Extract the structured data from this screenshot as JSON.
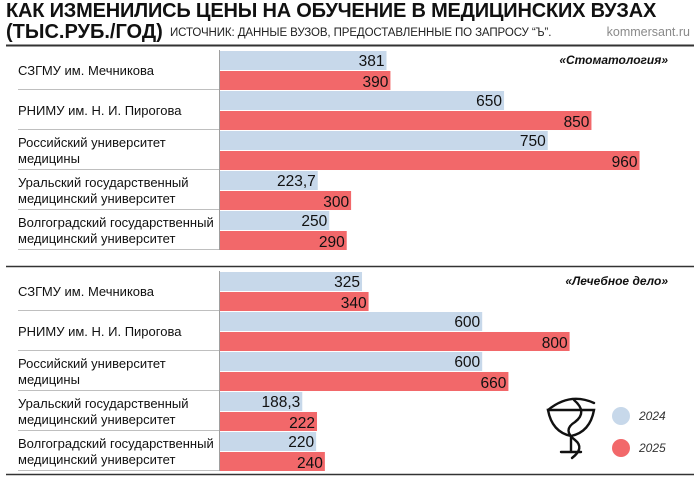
{
  "header": {
    "title_line1": "КАК ИЗМЕНИЛИСЬ ЦЕНЫ НА ОБУЧЕНИЕ В МЕДИЦИНСКИХ ВУЗАХ",
    "title_line2": "(ТЫС.РУБ./ГОД)",
    "source": "ИСТОЧНИК: ДАННЫЕ ВУЗОВ, ПРЕДОСТАВЛЕННЫЕ ПО ЗАПРОСУ “Ъ”.",
    "site": "kommersant.ru"
  },
  "colors": {
    "y2024": "#c7d8ea",
    "y2025": "#f2686a",
    "divider": "#333333",
    "rowline": "#bfbfbf"
  },
  "chart_data": {
    "type": "bar",
    "orientation": "horizontal",
    "title": "КАК ИЗМЕНИЛИСЬ ЦЕНЫ НА ОБУЧЕНИЕ В МЕДИЦИНСКИХ ВУЗАХ (ТЫС.РУБ./ГОД)",
    "unit": "тыс. руб./год",
    "legend": [
      {
        "key": "y2024",
        "label": "2024"
      },
      {
        "key": "y2025",
        "label": "2025"
      }
    ],
    "panels": [
      {
        "name": "«Стоматология»",
        "rows": [
          {
            "lines": [
              "СЗГМУ им. Мечникова"
            ],
            "y2024": 381,
            "y2024_label": "381",
            "y2025": 390,
            "y2025_label": "390"
          },
          {
            "lines": [
              "РНИМУ им. Н. И. Пирогова"
            ],
            "y2024": 650,
            "y2024_label": "650",
            "y2025": 850,
            "y2025_label": "850"
          },
          {
            "lines": [
              "Российский университет",
              "медицины"
            ],
            "y2024": 750,
            "y2024_label": "750",
            "y2025": 960,
            "y2025_label": "960"
          },
          {
            "lines": [
              "Уральский государственный",
              "медицинский университет"
            ],
            "y2024": 223.7,
            "y2024_label": "223,7",
            "y2025": 300,
            "y2025_label": "300"
          },
          {
            "lines": [
              "Волгоградский государственный",
              "медицинский университет"
            ],
            "y2024": 250,
            "y2024_label": "250",
            "y2025": 290,
            "y2025_label": "290"
          }
        ]
      },
      {
        "name": "«Лечебное дело»",
        "rows": [
          {
            "lines": [
              "СЗГМУ им. Мечникова"
            ],
            "y2024": 325,
            "y2024_label": "325",
            "y2025": 340,
            "y2025_label": "340"
          },
          {
            "lines": [
              "РНИМУ им. Н. И. Пирогова"
            ],
            "y2024": 600,
            "y2024_label": "600",
            "y2025": 800,
            "y2025_label": "800"
          },
          {
            "lines": [
              "Российский университет",
              "медицины"
            ],
            "y2024": 600,
            "y2024_label": "600",
            "y2025": 660,
            "y2025_label": "660"
          },
          {
            "lines": [
              "Уральский государственный",
              "медицинский университет"
            ],
            "y2024": 188.3,
            "y2024_label": "188,3",
            "y2025": 222,
            "y2025_label": "222"
          },
          {
            "lines": [
              "Волгоградский государственный",
              "медицинский университет"
            ],
            "y2024": 220,
            "y2024_label": "220",
            "y2025": 240,
            "y2025_label": "240"
          }
        ]
      }
    ]
  }
}
